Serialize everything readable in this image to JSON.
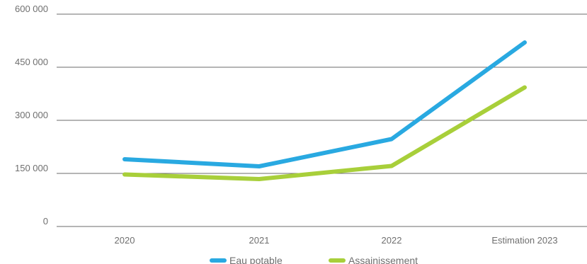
{
  "chart_data": {
    "type": "line",
    "title": "",
    "xlabel": "",
    "ylabel": "",
    "categories": [
      "2020",
      "2021",
      "2022",
      "Estimation 2023"
    ],
    "y_ticks": [
      "0",
      "150 000",
      "300 000",
      "450 000",
      "600 000"
    ],
    "y_tick_values": [
      0,
      150000,
      300000,
      450000,
      600000
    ],
    "ylim": [
      0,
      600000
    ],
    "grid": "horizontal",
    "legend_position": "bottom",
    "series": [
      {
        "name": "Eau potable",
        "color": "#29a9e1",
        "values": [
          190000,
          170000,
          247000,
          520000
        ]
      },
      {
        "name": "Assainissement",
        "color": "#a8cf3a",
        "values": [
          147000,
          134000,
          171000,
          393000
        ]
      }
    ]
  }
}
